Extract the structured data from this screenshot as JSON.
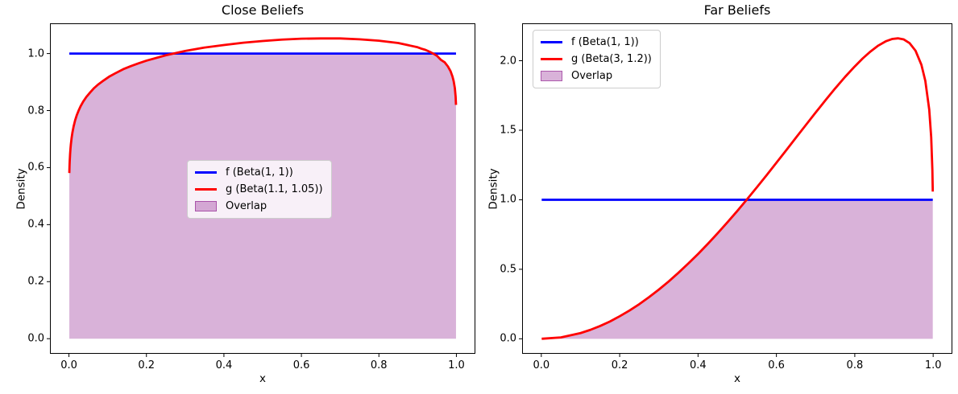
{
  "figure": {
    "background": "#ffffff"
  },
  "chart_data": [
    {
      "type": "line",
      "title": "Close Beliefs",
      "xlabel": "x",
      "ylabel": "Density",
      "xlim": [
        -0.049,
        1.049
      ],
      "ylim": [
        -0.053,
        1.106
      ],
      "xticks": [
        0.0,
        0.2,
        0.4,
        0.6,
        0.8,
        1.0
      ],
      "yticks": [
        0.0,
        0.2,
        0.4,
        0.6,
        0.8,
        1.0
      ],
      "grid": false,
      "legend": {
        "position": "center",
        "entries": [
          {
            "label": "f (Beta(1, 1))",
            "color": "#0000ff",
            "type": "line"
          },
          {
            "label": "g (Beta(1.1, 1.05))",
            "color": "#ff0000",
            "type": "line"
          },
          {
            "label": "Overlap",
            "color": "#800080",
            "opacity": 0.3,
            "type": "patch"
          }
        ]
      },
      "series": [
        {
          "name": "f (Beta(1, 1))",
          "color": "#0000ff",
          "x": [
            0.001,
            0.999
          ],
          "y": [
            1.0,
            1.0
          ]
        },
        {
          "name": "g (Beta(1.1, 1.05))",
          "color": "#ff0000",
          "x": [
            0.001,
            0.0015,
            0.002,
            0.003,
            0.004,
            0.005,
            0.007,
            0.009,
            0.012,
            0.016,
            0.02,
            0.025,
            0.03,
            0.037,
            0.045,
            0.055,
            0.065,
            0.075,
            0.09,
            0.105,
            0.12,
            0.14,
            0.16,
            0.18,
            0.2,
            0.25,
            0.3,
            0.35,
            0.4,
            0.45,
            0.5,
            0.55,
            0.6,
            0.65,
            0.7,
            0.75,
            0.8,
            0.85,
            0.9,
            0.91,
            0.92,
            0.93,
            0.94,
            0.95,
            0.96,
            0.97,
            0.978,
            0.985,
            0.99,
            0.993,
            0.996,
            0.998,
            0.999
          ],
          "y": [
            0.581,
            0.605,
            0.622,
            0.648,
            0.667,
            0.682,
            0.705,
            0.723,
            0.744,
            0.766,
            0.783,
            0.8,
            0.815,
            0.832,
            0.848,
            0.864,
            0.879,
            0.891,
            0.906,
            0.92,
            0.931,
            0.945,
            0.956,
            0.966,
            0.975,
            0.994,
            1.009,
            1.021,
            1.03,
            1.038,
            1.044,
            1.049,
            1.052,
            1.053,
            1.053,
            1.05,
            1.045,
            1.037,
            1.022,
            1.017,
            1.013,
            1.007,
            1.0,
            0.992,
            0.978,
            0.969,
            0.955,
            0.938,
            0.919,
            0.903,
            0.879,
            0.849,
            0.82
          ]
        }
      ],
      "overlap": {
        "name": "Overlap",
        "rule": "min(f,g)",
        "color": "#800080",
        "opacity": 0.3
      }
    },
    {
      "type": "line",
      "title": "Far Beliefs",
      "xlabel": "x",
      "ylabel": "Density",
      "xlim": [
        -0.049,
        1.049
      ],
      "ylim": [
        -0.108,
        2.269
      ],
      "xticks": [
        0.0,
        0.2,
        0.4,
        0.6,
        0.8,
        1.0
      ],
      "yticks": [
        0.0,
        0.5,
        1.0,
        1.5,
        2.0
      ],
      "grid": false,
      "legend": {
        "position": "upper left",
        "entries": [
          {
            "label": "f (Beta(1, 1))",
            "color": "#0000ff",
            "type": "line"
          },
          {
            "label": "g (Beta(3, 1.2))",
            "color": "#ff0000",
            "type": "line"
          },
          {
            "label": "Overlap",
            "color": "#800080",
            "opacity": 0.3,
            "type": "patch"
          }
        ]
      },
      "series": [
        {
          "name": "f (Beta(1, 1))",
          "color": "#0000ff",
          "x": [
            0.001,
            0.999
          ],
          "y": [
            1.0,
            1.0
          ]
        },
        {
          "name": "g (Beta(3, 1.2))",
          "color": "#ff0000",
          "x": [
            0.001,
            0.05,
            0.1,
            0.125,
            0.15,
            0.175,
            0.2,
            0.225,
            0.25,
            0.275,
            0.3,
            0.325,
            0.35,
            0.375,
            0.4,
            0.425,
            0.45,
            0.475,
            0.5,
            0.525,
            0.55,
            0.575,
            0.6,
            0.625,
            0.65,
            0.675,
            0.7,
            0.725,
            0.75,
            0.775,
            0.8,
            0.82,
            0.84,
            0.86,
            0.88,
            0.895,
            0.91,
            0.925,
            0.94,
            0.955,
            0.97,
            0.98,
            0.99,
            0.995,
            0.998,
            0.999
          ],
          "y": [
            0.0,
            0.01,
            0.041,
            0.064,
            0.092,
            0.124,
            0.162,
            0.203,
            0.249,
            0.3,
            0.354,
            0.412,
            0.475,
            0.541,
            0.61,
            0.683,
            0.759,
            0.838,
            0.919,
            1.003,
            1.089,
            1.177,
            1.266,
            1.356,
            1.447,
            1.537,
            1.627,
            1.715,
            1.801,
            1.883,
            1.959,
            2.016,
            2.066,
            2.109,
            2.141,
            2.156,
            2.161,
            2.153,
            2.126,
            2.072,
            1.971,
            1.855,
            1.648,
            1.449,
            1.214,
            1.059
          ]
        }
      ],
      "overlap": {
        "name": "Overlap",
        "rule": "min(f,g)",
        "color": "#800080",
        "opacity": 0.3
      }
    }
  ]
}
